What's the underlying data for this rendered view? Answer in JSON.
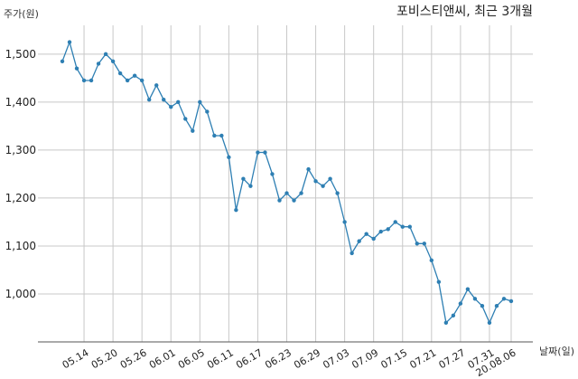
{
  "chart_data": {
    "type": "line",
    "title": "포비스티앤씨, 최근 3개월",
    "ylabel": "주가(원)",
    "xlabel": "날짜(일)",
    "ylim": [
      900,
      1560
    ],
    "yticks": [
      1000,
      1100,
      1200,
      1300,
      1400,
      1500
    ],
    "ytick_labels": [
      "1,000",
      "1,100",
      "1,200",
      "1,300",
      "1,400",
      "1,500"
    ],
    "xtick_labels": [
      "05.14",
      "05.20",
      "05.26",
      "06.01",
      "06.05",
      "06.11",
      "06.17",
      "06.23",
      "06.29",
      "07.03",
      "07.09",
      "07.15",
      "07.21",
      "07.27",
      "07.31",
      "20.08.06"
    ],
    "xtick_index": [
      3,
      7,
      11,
      15,
      19,
      23,
      27,
      31,
      35,
      39,
      43,
      47,
      51,
      55,
      59,
      62
    ],
    "grid": true,
    "series": [
      {
        "color": "#2e7fb3",
        "values": [
          1485,
          1525,
          1470,
          1445,
          1445,
          1480,
          1500,
          1485,
          1460,
          1445,
          1455,
          1445,
          1405,
          1435,
          1405,
          1390,
          1400,
          1365,
          1340,
          1400,
          1380,
          1330,
          1330,
          1285,
          1175,
          1240,
          1225,
          1295,
          1295,
          1250,
          1195,
          1210,
          1195,
          1210,
          1260,
          1235,
          1225,
          1240,
          1210,
          1150,
          1085,
          1110,
          1125,
          1115,
          1130,
          1135,
          1150,
          1140,
          1140,
          1105,
          1105,
          1070,
          1025,
          940,
          955,
          980,
          1010,
          990,
          975,
          940,
          975,
          990,
          985
        ]
      }
    ]
  }
}
